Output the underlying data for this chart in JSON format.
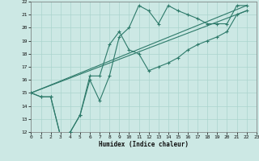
{
  "xlabel": "Humidex (Indice chaleur)",
  "bg_color": "#cce8e4",
  "line_color": "#2d7a6a",
  "grid_color": "#aad4ce",
  "xlim": [
    0,
    23
  ],
  "ylim": [
    12,
    22
  ],
  "xtick_vals": [
    0,
    1,
    2,
    3,
    4,
    5,
    6,
    7,
    8,
    9,
    10,
    11,
    12,
    13,
    14,
    15,
    16,
    17,
    18,
    19,
    20,
    21,
    22,
    23
  ],
  "ytick_vals": [
    12,
    13,
    14,
    15,
    16,
    17,
    18,
    19,
    20,
    21,
    22
  ],
  "line1_x": [
    0,
    1,
    2,
    3,
    4,
    5,
    6,
    7,
    8,
    9,
    10,
    11,
    12,
    13,
    14,
    15,
    16,
    17,
    18,
    19,
    20,
    21,
    22
  ],
  "line1_y": [
    15.0,
    14.7,
    14.7,
    11.7,
    12.0,
    13.3,
    16.0,
    14.4,
    16.3,
    19.3,
    20.0,
    21.7,
    21.3,
    20.3,
    21.7,
    21.3,
    21.0,
    20.7,
    20.3,
    20.3,
    20.3,
    21.7,
    21.7
  ],
  "line2_x": [
    0,
    1,
    2,
    3,
    4,
    5,
    6,
    7,
    8,
    9,
    10,
    11,
    12,
    13,
    14,
    15,
    16,
    17,
    18,
    19,
    20,
    21,
    22
  ],
  "line2_y": [
    15.0,
    14.7,
    14.7,
    11.7,
    12.0,
    13.3,
    16.3,
    16.3,
    18.7,
    19.7,
    18.3,
    18.0,
    16.7,
    17.0,
    17.3,
    17.7,
    18.3,
    18.7,
    19.0,
    19.3,
    19.7,
    21.0,
    21.3
  ],
  "line3_x": [
    0,
    22
  ],
  "line3_y": [
    15.0,
    21.3
  ],
  "line4_x": [
    0,
    22
  ],
  "line4_y": [
    15.0,
    21.7
  ]
}
